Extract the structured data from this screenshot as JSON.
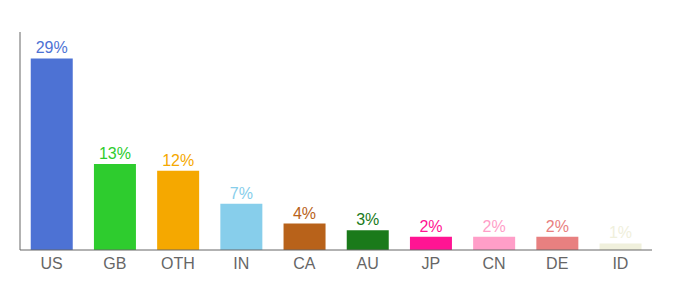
{
  "chart_data": {
    "type": "bar",
    "categories": [
      "US",
      "GB",
      "OTH",
      "IN",
      "CA",
      "AU",
      "JP",
      "CN",
      "DE",
      "ID"
    ],
    "values": [
      29,
      13,
      12,
      7,
      4,
      3,
      2,
      2,
      2,
      1
    ],
    "value_labels": [
      "29%",
      "13%",
      "12%",
      "7%",
      "4%",
      "3%",
      "2%",
      "2%",
      "2%",
      "1%"
    ],
    "data_labels": true,
    "colors": [
      "#4d72d4",
      "#2ecc2e",
      "#f5a800",
      "#87ceeb",
      "#b8621a",
      "#1a7a1a",
      "#ff1493",
      "#ff9ec8",
      "#e88080",
      "#f0f0dc"
    ],
    "ylim": [
      0,
      33
    ],
    "yticks": [],
    "tick_labels": "x",
    "grid": false
  }
}
